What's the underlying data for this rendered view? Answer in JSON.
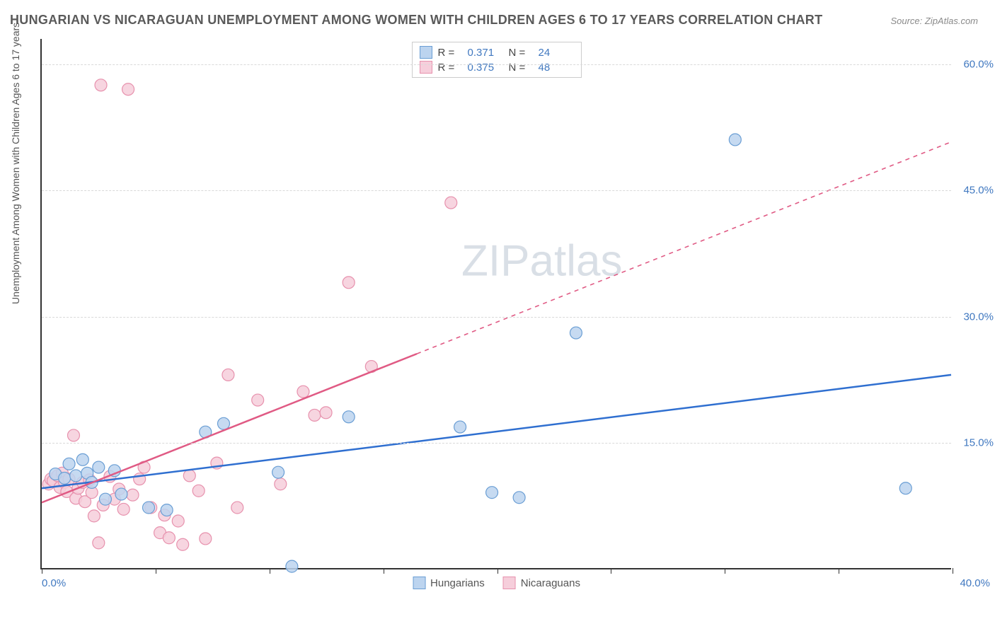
{
  "title": "HUNGARIAN VS NICARAGUAN UNEMPLOYMENT AMONG WOMEN WITH CHILDREN AGES 6 TO 17 YEARS CORRELATION CHART",
  "source": "Source: ZipAtlas.com",
  "watermark_a": "ZIP",
  "watermark_b": "atlas",
  "y_axis_label": "Unemployment Among Women with Children Ages 6 to 17 years",
  "chart": {
    "type": "scatter",
    "background_color": "#ffffff",
    "grid_color": "#d9d9d9",
    "axis_color": "#333333",
    "tick_label_color": "#4078c0",
    "xlim": [
      0,
      40
    ],
    "ylim": [
      0,
      63
    ],
    "xticks_pct": [
      0,
      12.5,
      25,
      37.5,
      50,
      62.5,
      75,
      87.5,
      100
    ],
    "xtick_labels": {
      "min": "0.0%",
      "max": "40.0%"
    },
    "ylines": [
      {
        "value": 15,
        "label": "15.0%"
      },
      {
        "value": 30,
        "label": "30.0%"
      },
      {
        "value": 45,
        "label": "45.0%"
      },
      {
        "value": 60,
        "label": "60.0%"
      }
    ],
    "label_fontsize": 14,
    "tick_fontsize": 15,
    "title_fontsize": 18,
    "marker_radius": 8.5,
    "marker_stroke_width": 1.2,
    "line_width": 2.5,
    "series": [
      {
        "name": "Hungarians",
        "fill": "#bcd4ef",
        "stroke": "#6a9ed4",
        "line_color": "#2f6fd0",
        "R_label": "R  =",
        "R": "0.371",
        "N_label": "N  =",
        "N": "24",
        "regression": {
          "x1": 0,
          "y1": 9.5,
          "x2": 40,
          "y2": 23,
          "dash_from_x": 40
        },
        "points": [
          [
            0.6,
            11.2
          ],
          [
            1.0,
            10.7
          ],
          [
            1.2,
            12.4
          ],
          [
            1.5,
            11.0
          ],
          [
            1.8,
            12.9
          ],
          [
            2.0,
            11.3
          ],
          [
            2.2,
            10.2
          ],
          [
            2.5,
            12.0
          ],
          [
            2.8,
            8.2
          ],
          [
            3.2,
            11.6
          ],
          [
            3.5,
            8.8
          ],
          [
            4.7,
            7.2
          ],
          [
            5.5,
            6.9
          ],
          [
            7.2,
            16.2
          ],
          [
            8.0,
            17.2
          ],
          [
            10.4,
            11.4
          ],
          [
            11.0,
            0.2
          ],
          [
            13.5,
            18.0
          ],
          [
            18.4,
            16.8
          ],
          [
            19.8,
            9.0
          ],
          [
            21.0,
            8.4
          ],
          [
            23.5,
            28.0
          ],
          [
            30.5,
            51.0
          ],
          [
            38.0,
            9.5
          ]
        ]
      },
      {
        "name": "Nicaraguans",
        "fill": "#f6cedb",
        "stroke": "#e791ad",
        "line_color": "#e05a84",
        "R_label": "R  =",
        "R": "0.375",
        "N_label": "N  =",
        "N": "48",
        "regression": {
          "x1": 0,
          "y1": 7.8,
          "x2": 30,
          "y2": 40,
          "dash_from_x": 16.5
        },
        "points": [
          [
            0.3,
            10.0
          ],
          [
            0.4,
            10.6
          ],
          [
            0.5,
            10.4
          ],
          [
            0.7,
            11.0
          ],
          [
            0.8,
            9.6
          ],
          [
            0.9,
            11.3
          ],
          [
            1.0,
            10.2
          ],
          [
            1.1,
            9.1
          ],
          [
            1.2,
            10.6
          ],
          [
            1.4,
            15.8
          ],
          [
            1.5,
            8.3
          ],
          [
            1.6,
            9.5
          ],
          [
            1.8,
            10.2
          ],
          [
            1.9,
            7.9
          ],
          [
            2.1,
            10.5
          ],
          [
            2.2,
            9.0
          ],
          [
            2.3,
            6.2
          ],
          [
            2.5,
            3.0
          ],
          [
            2.6,
            57.5
          ],
          [
            2.7,
            7.5
          ],
          [
            3.0,
            10.9
          ],
          [
            3.2,
            8.2
          ],
          [
            3.4,
            9.4
          ],
          [
            3.6,
            7.0
          ],
          [
            3.8,
            57.0
          ],
          [
            4.0,
            8.7
          ],
          [
            4.3,
            10.6
          ],
          [
            4.5,
            12.0
          ],
          [
            4.8,
            7.2
          ],
          [
            5.2,
            4.2
          ],
          [
            5.4,
            6.3
          ],
          [
            5.6,
            3.6
          ],
          [
            6.0,
            5.6
          ],
          [
            6.2,
            2.8
          ],
          [
            6.5,
            11.0
          ],
          [
            6.9,
            9.2
          ],
          [
            7.2,
            3.5
          ],
          [
            7.7,
            12.5
          ],
          [
            8.2,
            23.0
          ],
          [
            8.6,
            7.2
          ],
          [
            9.5,
            20.0
          ],
          [
            10.5,
            10.0
          ],
          [
            11.5,
            21.0
          ],
          [
            12.0,
            18.2
          ],
          [
            12.5,
            18.5
          ],
          [
            13.5,
            34.0
          ],
          [
            14.5,
            24.0
          ],
          [
            18.0,
            43.5
          ]
        ]
      }
    ]
  }
}
